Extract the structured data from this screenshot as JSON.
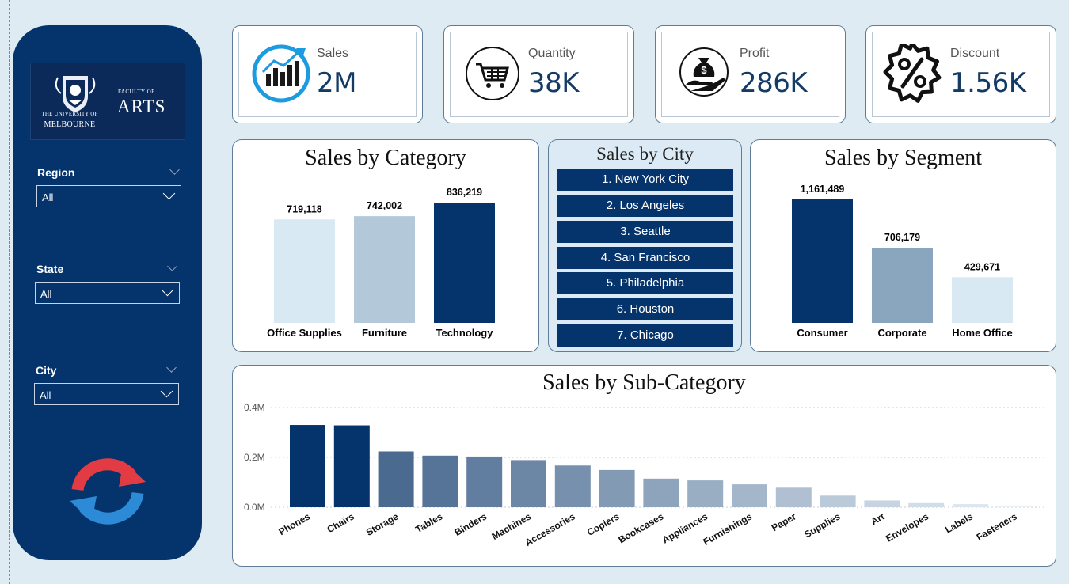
{
  "sidebar": {
    "logo": {
      "university_line1": "THE UNIVERSITY OF",
      "university_line2": "MELBOURNE",
      "faculty_line1": "FACULTY OF",
      "faculty_line2": "ARTS"
    },
    "filters": [
      {
        "label": "Region",
        "value": "All"
      },
      {
        "label": "State",
        "value": "All"
      },
      {
        "label": "City",
        "value": "All"
      }
    ]
  },
  "kpis": [
    {
      "label": "Sales",
      "value": "2M",
      "icon": "sales-chart-icon"
    },
    {
      "label": "Quantity",
      "value": "38K",
      "icon": "shopping-cart-icon"
    },
    {
      "label": "Profit",
      "value": "286K",
      "icon": "money-bag-hand-icon"
    },
    {
      "label": "Discount",
      "value": "1.56K",
      "icon": "percent-badge-icon"
    }
  ],
  "sales_by_city": {
    "title": "Sales by City",
    "items": [
      "1. New York City",
      "2. Los Angeles",
      "3. Seattle",
      "4. San Francisco",
      "5. Philadelphia",
      "6. Houston",
      "7. Chicago"
    ]
  },
  "colors": {
    "sidebar": "#05336b",
    "dark_bar": "#05336b",
    "background": "#deebf3"
  },
  "chart_data": [
    {
      "type": "bar",
      "title": "Sales by Category",
      "categories": [
        "Office Supplies",
        "Furniture",
        "Technology"
      ],
      "values": [
        719118,
        742002,
        836219
      ],
      "value_labels": [
        "719,118",
        "742,002",
        "836,219"
      ],
      "colors": [
        "#d9e9f4",
        "#b3c9d9",
        "#05336b"
      ]
    },
    {
      "type": "bar",
      "title": "Sales by Segment",
      "categories": [
        "Consumer",
        "Corporate",
        "Home Office"
      ],
      "values": [
        1161489,
        706179,
        429671
      ],
      "value_labels": [
        "1,161,489",
        "706,179",
        "429,671"
      ],
      "colors": [
        "#05336b",
        "#8aa6bf",
        "#d9e9f4"
      ]
    },
    {
      "type": "bar",
      "title": "Sales by Sub-Category",
      "categories": [
        "Phones",
        "Chairs",
        "Storage",
        "Tables",
        "Binders",
        "Machines",
        "Accessories",
        "Copiers",
        "Bookcases",
        "Appliances",
        "Furnishings",
        "Paper",
        "Supplies",
        "Art",
        "Envelopes",
        "Labels",
        "Fasteners"
      ],
      "values": [
        330007,
        328449,
        223844,
        206966,
        203413,
        189239,
        167380,
        149528,
        114880,
        107532,
        91705,
        78479,
        46674,
        27119,
        16476,
        12486,
        3024
      ],
      "y_ticks": [
        "0.0M",
        "0.2M",
        "0.4M"
      ],
      "ylim": [
        0,
        400000
      ],
      "grid": true
    }
  ]
}
